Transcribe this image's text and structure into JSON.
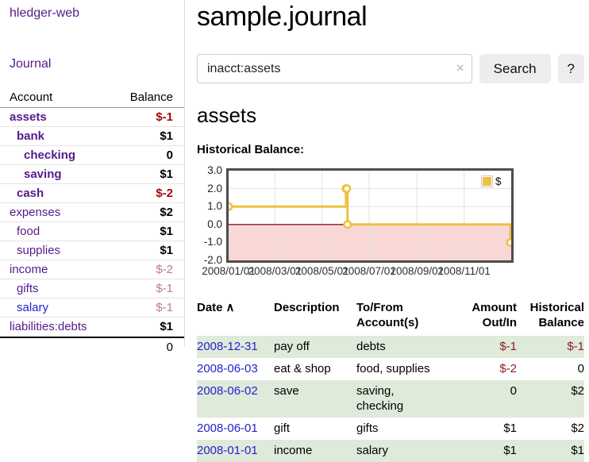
{
  "app": {
    "brand": "hledger-web"
  },
  "sidebar": {
    "journal_link": "Journal",
    "accounts": {
      "col_account": "Account",
      "col_balance": "Balance",
      "rows": [
        {
          "name": "assets",
          "depth": 0,
          "balance": "$-1",
          "bold": true,
          "neg": "strong",
          "link": "purple"
        },
        {
          "name": "bank",
          "depth": 1,
          "balance": "$1",
          "bold": true,
          "neg": "none",
          "link": "purple"
        },
        {
          "name": "checking",
          "depth": 2,
          "balance": "0",
          "bold": true,
          "neg": "none",
          "link": "purple"
        },
        {
          "name": "saving",
          "depth": 2,
          "balance": "$1",
          "bold": true,
          "neg": "none",
          "link": "purple"
        },
        {
          "name": "cash",
          "depth": 1,
          "balance": "$-2",
          "bold": true,
          "neg": "strong",
          "link": "purple"
        },
        {
          "name": "expenses",
          "depth": 0,
          "balance": "$2",
          "bold": false,
          "neg": "none",
          "link": "purple"
        },
        {
          "name": "food",
          "depth": 1,
          "balance": "$1",
          "bold": false,
          "neg": "none",
          "link": "purple"
        },
        {
          "name": "supplies",
          "depth": 1,
          "balance": "$1",
          "bold": false,
          "neg": "none",
          "link": "purple"
        },
        {
          "name": "income",
          "depth": 0,
          "balance": "$-2",
          "bold": false,
          "neg": "faint",
          "link": "purple"
        },
        {
          "name": "gifts",
          "depth": 1,
          "balance": "$-1",
          "bold": false,
          "neg": "faint",
          "link": "purple"
        },
        {
          "name": "salary",
          "depth": 1,
          "balance": "$-1",
          "bold": false,
          "neg": "faint",
          "link": "blue"
        },
        {
          "name": "liabilities:debts",
          "depth": 0,
          "balance": "$1",
          "bold": false,
          "neg": "none",
          "link": "purple"
        }
      ],
      "total": "0"
    }
  },
  "header": {
    "title": "sample.journal"
  },
  "search": {
    "value": "inacct:assets",
    "clear_icon": "×",
    "search_button": "Search",
    "help_button": "?"
  },
  "account_page": {
    "heading": "assets",
    "chart_label": "Historical Balance:"
  },
  "chart_data": {
    "type": "line",
    "title": "Historical Balance",
    "step": true,
    "series": [
      {
        "name": "$",
        "color": "#edc240",
        "points": [
          {
            "date": "2008-01-01",
            "day": 0,
            "value": 1
          },
          {
            "date": "2008-06-01",
            "day": 152,
            "value": 2
          },
          {
            "date": "2008-06-02",
            "day": 153,
            "value": 2
          },
          {
            "date": "2008-06-03",
            "day": 154,
            "value": 0
          },
          {
            "date": "2008-12-31",
            "day": 365,
            "value": -1
          }
        ]
      }
    ],
    "x_ticks": [
      {
        "label": "2008/01/01",
        "day": 0
      },
      {
        "label": "2008/03/01",
        "day": 60
      },
      {
        "label": "2008/05/01",
        "day": 121
      },
      {
        "label": "2008/07/01",
        "day": 182
      },
      {
        "label": "2008/09/01",
        "day": 244
      },
      {
        "label": "2008/11/01",
        "day": 305
      }
    ],
    "x_range_days": 366,
    "y_ticks": [
      "3.0",
      "2.0",
      "1.0",
      "0.0",
      "-1.0",
      "-2.0"
    ],
    "ylim": [
      -2,
      3
    ],
    "legend": {
      "label": "$",
      "position": "top-right"
    },
    "grid": true,
    "negative_region_color": "#f9d7d7",
    "zero_line_color": "#8b1a1a",
    "gridline_color": "#e2e2e2"
  },
  "register": {
    "columns": {
      "date": "Date",
      "description": "Description",
      "accounts": "To/From\nAccount(s)",
      "amount": "Amount\nOut/In",
      "balance": "Historical\nBalance"
    },
    "sort_icon": "∧",
    "rows": [
      {
        "date": "2008-12-31",
        "description": "pay off",
        "accounts": "debts",
        "amount": "$-1",
        "amount_neg": true,
        "balance": "$-1",
        "balance_neg": true,
        "shaded": true
      },
      {
        "date": "2008-06-03",
        "description": "eat & shop",
        "accounts": "food, supplies",
        "amount": "$-2",
        "amount_neg": true,
        "balance": "0",
        "balance_neg": false,
        "shaded": false
      },
      {
        "date": "2008-06-02",
        "description": "save",
        "accounts": "saving, checking",
        "amount": "0",
        "amount_neg": false,
        "balance": "$2",
        "balance_neg": false,
        "shaded": true
      },
      {
        "date": "2008-06-01",
        "description": "gift",
        "accounts": "gifts",
        "amount": "$1",
        "amount_neg": false,
        "balance": "$2",
        "balance_neg": false,
        "shaded": false
      },
      {
        "date": "2008-01-01",
        "description": "income",
        "accounts": "salary",
        "amount": "$1",
        "amount_neg": false,
        "balance": "$1",
        "balance_neg": false,
        "shaded": true
      }
    ]
  }
}
